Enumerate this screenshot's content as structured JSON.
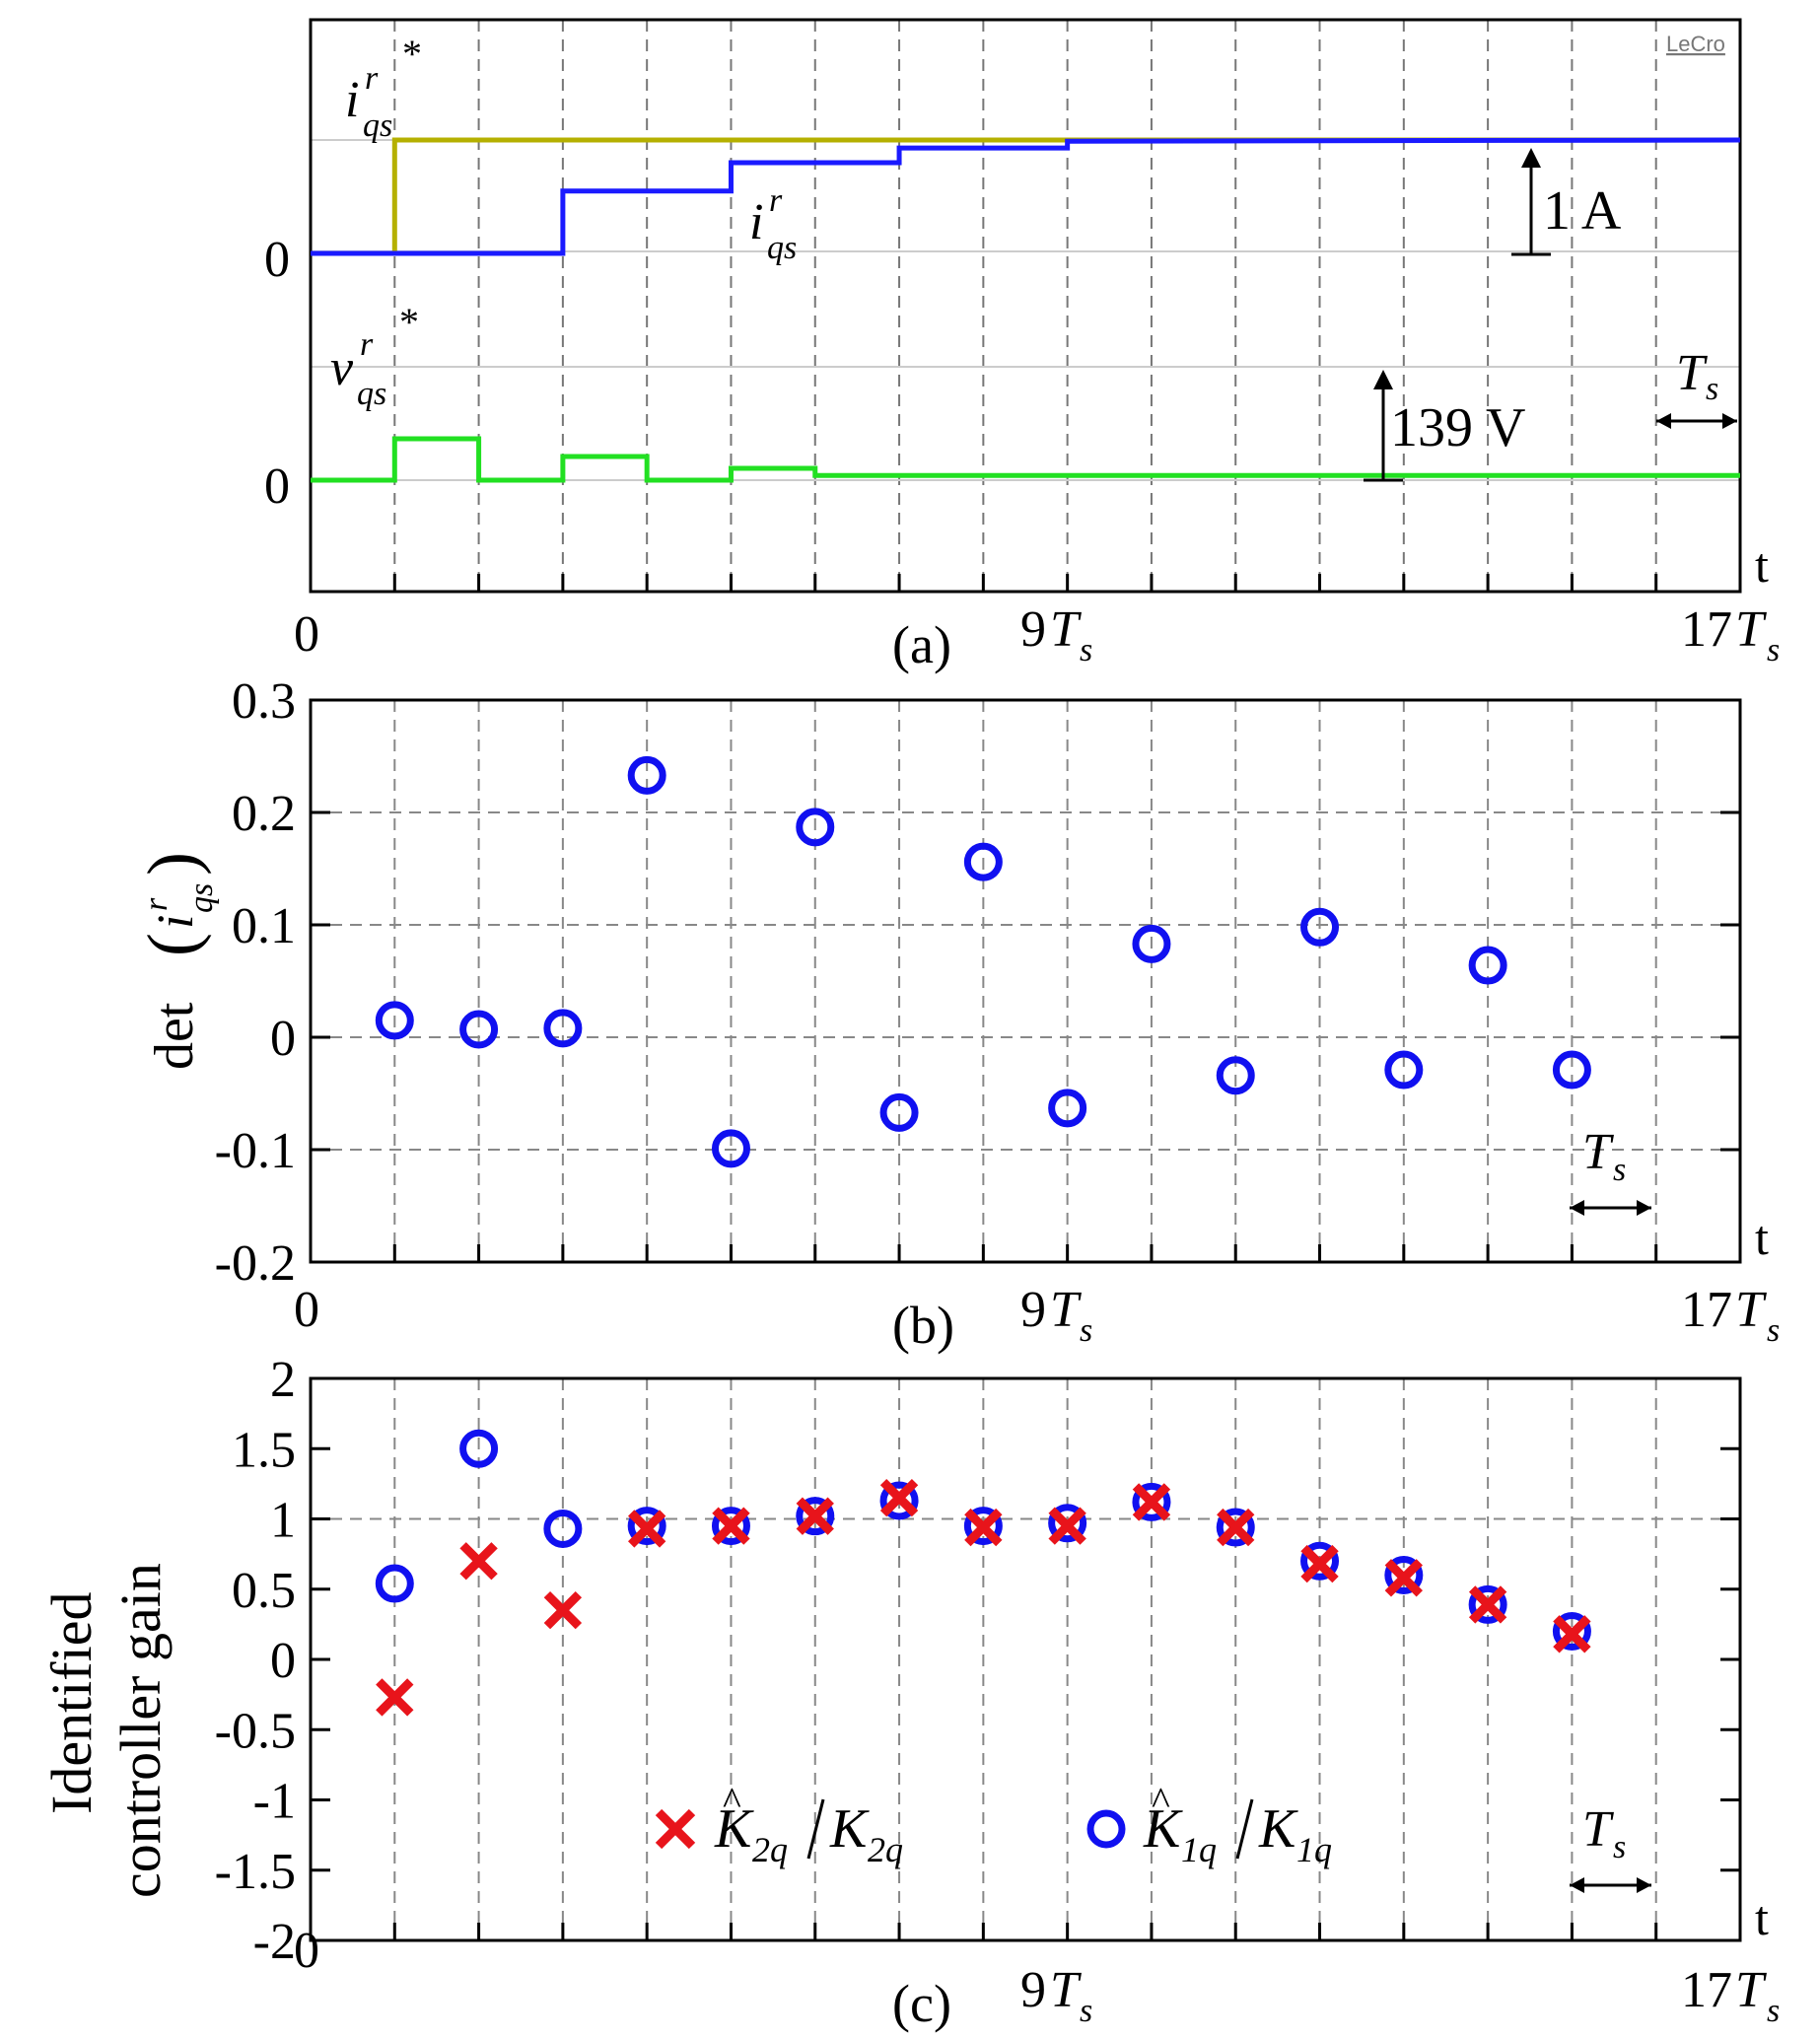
{
  "chart_data": [
    {
      "type": "line",
      "panel": "(a)",
      "title": "",
      "xlabel": "t",
      "x_ticks": [
        "0",
        "9Ts",
        "17Ts"
      ],
      "xlim": [
        0,
        17
      ],
      "series": [
        {
          "name": "i_qs^r* (reference current)",
          "color": "#b5b000",
          "x": [
            0,
            1,
            1,
            17
          ],
          "values": [
            0,
            0,
            1,
            1
          ]
        },
        {
          "name": "i_qs^r (measured current)",
          "color": "#1a1aff",
          "x": [
            0,
            3,
            3,
            5,
            5,
            7,
            7,
            9,
            9,
            17
          ],
          "values": [
            0,
            0,
            0.55,
            0.55,
            0.8,
            0.8,
            0.93,
            0.93,
            0.99,
            1.0
          ]
        },
        {
          "name": "v_qs^r* (reference voltage)",
          "color": "#22e022",
          "x": [
            0,
            1,
            1,
            2,
            2,
            3,
            3,
            4,
            4,
            5,
            5,
            6,
            6,
            17
          ],
          "values": [
            0,
            0,
            0.35,
            0.35,
            0,
            0,
            0.2,
            0.2,
            0,
            0,
            0.1,
            0.1,
            0.04,
            0.04
          ]
        }
      ],
      "annotations": {
        "current_scale": "1 A",
        "voltage_scale": "139 V",
        "period": "Ts",
        "zero_label": "0",
        "scope_brand": "LeCro"
      }
    },
    {
      "type": "scatter",
      "panel": "(b)",
      "xlabel": "t",
      "ylabel": "det(i_qs^r)",
      "ylim": [
        -0.2,
        0.3
      ],
      "yticks": [
        "0.3",
        "0.2",
        "0.1",
        "0",
        "-0.1",
        "-0.2"
      ],
      "x_ticks": [
        "0",
        "9Ts",
        "17Ts"
      ],
      "x": [
        1,
        2,
        3,
        4,
        5,
        6,
        7,
        8,
        9,
        10,
        11,
        12,
        13,
        14,
        15
      ],
      "values": [
        0.015,
        0.007,
        0.008,
        0.233,
        -0.099,
        0.187,
        -0.067,
        0.156,
        -0.063,
        0.083,
        -0.034,
        0.098,
        -0.029,
        0.064,
        -0.029
      ],
      "annotations": {
        "period": "Ts"
      }
    },
    {
      "type": "scatter",
      "panel": "(c)",
      "xlabel": "t",
      "ylabel": "Identified controller gain",
      "ylim": [
        -2,
        2
      ],
      "yticks": [
        "2",
        "1.5",
        "1",
        "0.5",
        "0",
        "-0.5",
        "-1",
        "-1.5",
        "-2"
      ],
      "x_ticks": [
        "0",
        "9Ts",
        "17Ts"
      ],
      "series": [
        {
          "name": "K̂2q / K2q",
          "marker": "x",
          "color": "#e8141b",
          "x": [
            1,
            2,
            3,
            4,
            5,
            6,
            7,
            8,
            9,
            10,
            11,
            12,
            13,
            14,
            15
          ],
          "values": [
            -0.27,
            0.7,
            0.35,
            0.93,
            0.95,
            1.02,
            1.15,
            0.94,
            0.95,
            1.12,
            0.94,
            0.68,
            0.58,
            0.39,
            0.18
          ]
        },
        {
          "name": "K̂1q / K1q",
          "marker": "o",
          "color": "#1010f0",
          "x": [
            1,
            2,
            3,
            4,
            5,
            6,
            7,
            8,
            9,
            10,
            11,
            12,
            13,
            14,
            15
          ],
          "values": [
            0.54,
            1.5,
            0.93,
            0.95,
            0.95,
            1.02,
            1.13,
            0.95,
            0.97,
            1.12,
            0.94,
            0.7,
            0.6,
            0.39,
            0.2
          ]
        }
      ],
      "legend": {
        "x_label": "K̂2q / K2q",
        "o_label": "K̂1q / K1q"
      },
      "annotations": {
        "period": "Ts"
      }
    }
  ],
  "labels": {
    "panel_a": "(a)",
    "panel_b": "(b)",
    "panel_c": "(c)",
    "t": "t",
    "zero": "0",
    "nine_ts": "9",
    "seventeen_ts": "17",
    "ts": "T",
    "ts_sub": "s",
    "one_amp": "1 A",
    "volts": "139 V",
    "lecro": "LeCro",
    "ylabel_b": "det",
    "ylabel_c_line1": "Identified",
    "ylabel_c_line2": "controller gain"
  }
}
